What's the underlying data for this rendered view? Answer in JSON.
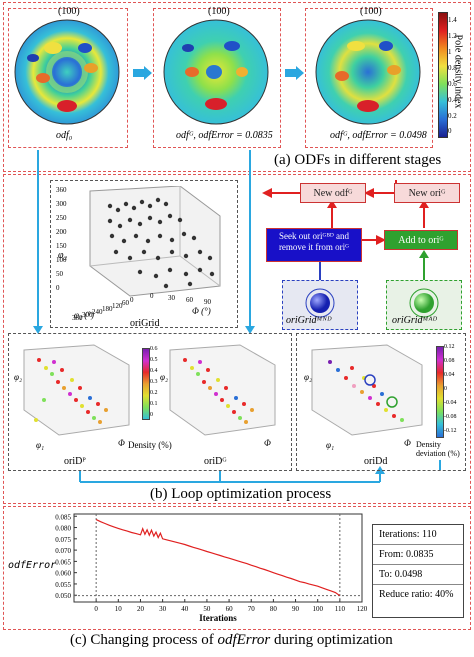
{
  "panel_a": {
    "label_top": "(100)",
    "stage1_label": "odf₀",
    "stage2_label": "odfᴳ, odfError = 0.0835",
    "stage3_label": "odfᴳ, odfError = 0.0498",
    "colorbar_title": "Pole density index",
    "colorbar_ticks": [
      "1.4",
      "1.2",
      "1",
      "0.8",
      "0.6",
      "0.4",
      "0.2",
      "0"
    ],
    "caption": "(a)  ODFs in different stages"
  },
  "panel_b": {
    "origrid_axis_phi2": "φ₂",
    "origrid_axis_phi1": "φ₁  (°)",
    "origrid_axis_Phi": "Φ  (°)",
    "origrid_yticks": [
      "360",
      "300",
      "250",
      "200",
      "150",
      "100",
      "50",
      "0"
    ],
    "origrid_x1ticks": [
      "0",
      "60",
      "120",
      "180",
      "240",
      "300",
      "360"
    ],
    "origrid_x2ticks": [
      "0",
      "30",
      "60",
      "90"
    ],
    "origrid_label": "oriGrid",
    "new_odf": "New odfᴳ",
    "new_ori": "New oriᴳ",
    "seek_out": "Seek out oriᴳᴮᴰ and remove it from oriᴳ",
    "add_to": "Add to oriᴳ",
    "grid_mnd": "oriGridᴹᴺᴰ",
    "grid_mad": "oriGridᴹᴬᴰ",
    "oriD_P": "oriDᴾ",
    "oriD_G": "oriDᴳ",
    "oriDd": "oriDd",
    "density_label": "Density (%)",
    "density_ticks": [
      "0.6",
      "0.5",
      "0.4",
      "0.3",
      "0.2",
      "0.1",
      "0"
    ],
    "deviation_label": "Density deviation (%)",
    "deviation_ticks": [
      "0.12",
      "0.08",
      "0.04",
      "0",
      "-0.04",
      "-0.08",
      "-0.12"
    ],
    "phi1": "φ₁",
    "phi2": "φ₂",
    "Phi": "Φ",
    "caption": "(b)  Loop optimization process"
  },
  "panel_c": {
    "ylabel": "odfError",
    "xlabel": "Iterations",
    "stats": [
      "Iterations: 110",
      "From: 0.0835",
      "To: 0.0498",
      "Reduce ratio: 40%"
    ],
    "caption_prefix": "(c)  Changing process of ",
    "caption_ital": "odfError",
    "caption_suffix": " during optimization"
  },
  "chart_data": {
    "type": "line",
    "xlabel": "Iterations",
    "ylabel": "odfError",
    "xlim": [
      -10,
      120
    ],
    "ylim": [
      0.047,
      0.086
    ],
    "xticks": [
      0,
      10,
      20,
      30,
      40,
      50,
      60,
      70,
      80,
      90,
      100,
      110,
      120
    ],
    "yticks": [
      0.05,
      0.055,
      0.06,
      0.065,
      0.07,
      0.075,
      0.08,
      0.085
    ],
    "x": [
      0,
      2,
      4,
      6,
      8,
      10,
      12,
      14,
      16,
      18,
      20,
      21,
      22,
      23,
      24,
      25,
      26,
      27,
      28,
      29,
      30,
      32,
      34,
      36,
      38,
      40,
      42,
      44,
      46,
      48,
      50,
      52,
      54,
      56,
      58,
      60,
      62,
      64,
      66,
      68,
      70,
      72,
      74,
      76,
      78,
      80,
      82,
      84,
      86,
      88,
      90,
      92,
      94,
      96,
      98,
      100,
      102,
      104,
      106,
      108,
      110
    ],
    "y": [
      0.0835,
      0.0826,
      0.0818,
      0.081,
      0.0803,
      0.0796,
      0.079,
      0.0784,
      0.0778,
      0.0773,
      0.0768,
      0.0795,
      0.077,
      0.079,
      0.0766,
      0.0788,
      0.0762,
      0.078,
      0.0756,
      0.0775,
      0.075,
      0.0745,
      0.074,
      0.0735,
      0.073,
      0.0725,
      0.0718,
      0.0712,
      0.0706,
      0.07,
      0.0694,
      0.0688,
      0.0682,
      0.0676,
      0.067,
      0.0664,
      0.0658,
      0.0652,
      0.0646,
      0.064,
      0.0633,
      0.0627,
      0.062,
      0.0614,
      0.0607,
      0.06,
      0.0593,
      0.0587,
      0.058,
      0.0574,
      0.0567,
      0.056,
      0.0556,
      0.055,
      0.0545,
      0.054,
      0.0533,
      0.0526,
      0.0519,
      0.0512,
      0.0498
    ],
    "refline_y": 0.0498,
    "refline_x": 110
  },
  "colors": {
    "red": "#e05555",
    "arrow_blue": "#2aa7e0",
    "arrow_red": "#e02020",
    "line_red": "#e02020"
  }
}
